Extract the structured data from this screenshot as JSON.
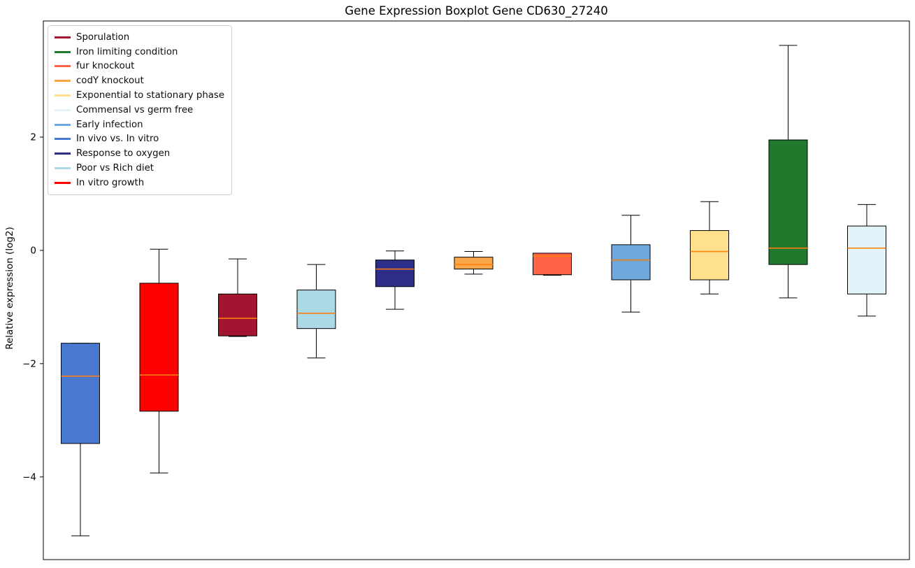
{
  "chart_data": {
    "type": "boxplot",
    "title": "Gene Expression Boxplot Gene CD630_27240",
    "ylabel": "Relative expression (log2)",
    "xlabel": "",
    "ylim": [
      -5.46,
      4.05
    ],
    "yticks": [
      2,
      0,
      -2,
      -4
    ],
    "ytick_labels": [
      "2",
      "0",
      "−2",
      "−4"
    ],
    "grid": false,
    "legend_position": "upper-left",
    "median_color": "#FF7F0E",
    "axis_color": "#000000",
    "legend": [
      {
        "label": "Sporulation",
        "color": "#A2142F"
      },
      {
        "label": "Iron limiting condition",
        "color": "#1F7A2E"
      },
      {
        "label": "fur knockout",
        "color": "#FF6347"
      },
      {
        "label": "codY knockout",
        "color": "#F9A64A"
      },
      {
        "label": "Exponential to stationary phase",
        "color": "#FFE08C"
      },
      {
        "label": "Commensal vs germ free",
        "color": "#E2F3F9"
      },
      {
        "label": "Early infection",
        "color": "#6FA8DC"
      },
      {
        "label": "In vivo vs. In vitro",
        "color": "#4878CF"
      },
      {
        "label": "Response to oxygen",
        "color": "#2D2D8A"
      },
      {
        "label": "Poor vs Rich diet",
        "color": "#ADD8E6"
      },
      {
        "label": "In vitro growth",
        "color": "#FF0000"
      }
    ],
    "boxes": [
      {
        "condition": "In vivo vs. In vitro",
        "color": "#4878CF",
        "whislo": -5.04,
        "q1": -3.41,
        "med": -2.22,
        "q3": -1.64,
        "whishi": -1.64
      },
      {
        "condition": "In vitro growth",
        "color": "#FF0000",
        "whislo": -3.93,
        "q1": -2.84,
        "med": -2.2,
        "q3": -0.58,
        "whishi": 0.02
      },
      {
        "condition": "Sporulation",
        "color": "#A2142F",
        "whislo": -1.52,
        "q1": -1.51,
        "med": -1.2,
        "q3": -0.77,
        "whishi": -0.15
      },
      {
        "condition": "Poor vs Rich diet",
        "color": "#ADD8E6",
        "whislo": -1.9,
        "q1": -1.38,
        "med": -1.11,
        "q3": -0.7,
        "whishi": -0.25
      },
      {
        "condition": "Response to oxygen",
        "color": "#2D2D8A",
        "whislo": -1.04,
        "q1": -0.64,
        "med": -0.33,
        "q3": -0.17,
        "whishi": -0.01
      },
      {
        "condition": "codY knockout",
        "color": "#F9A64A",
        "whislo": -0.42,
        "q1": -0.33,
        "med": -0.25,
        "q3": -0.12,
        "whishi": -0.02
      },
      {
        "condition": "fur knockout",
        "color": "#FF6347",
        "whislo": -0.44,
        "q1": -0.43,
        "med": -0.1,
        "q3": -0.05,
        "whishi": -0.05
      },
      {
        "condition": "Early infection",
        "color": "#6FA8DC",
        "whislo": -1.09,
        "q1": -0.52,
        "med": -0.17,
        "q3": 0.1,
        "whishi": 0.62
      },
      {
        "condition": "Exponential to stationary phase",
        "color": "#FFE08C",
        "whislo": -0.77,
        "q1": -0.52,
        "med": -0.02,
        "q3": 0.35,
        "whishi": 0.86
      },
      {
        "condition": "Iron limiting condition",
        "color": "#1F7A2E",
        "whislo": -0.84,
        "q1": -0.25,
        "med": 0.04,
        "q3": 1.95,
        "whishi": 3.62
      },
      {
        "condition": "Commensal vs germ free",
        "color": "#E2F3F9",
        "whislo": -1.16,
        "q1": -0.77,
        "med": 0.04,
        "q3": 0.43,
        "whishi": 0.81
      }
    ]
  }
}
